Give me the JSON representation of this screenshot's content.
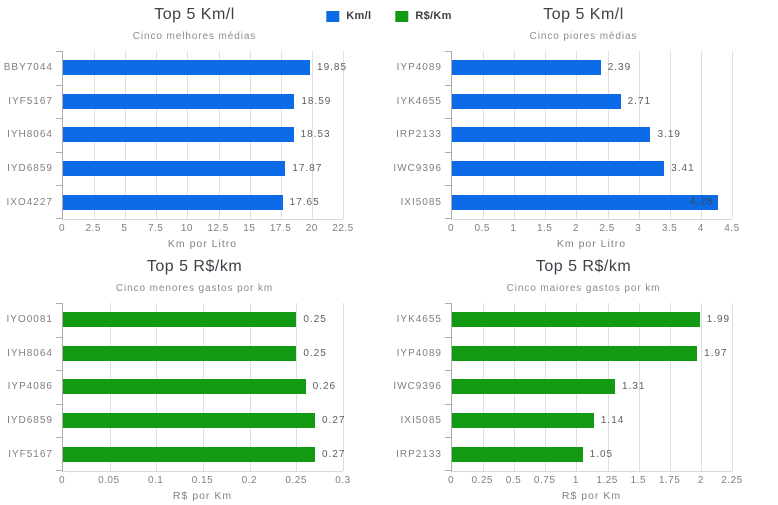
{
  "legend": {
    "items": [
      {
        "name": "kml-series",
        "label": "Km/l",
        "color": "#0d6be8"
      },
      {
        "name": "rskm-series",
        "label": "R$/Km",
        "color": "#129a13"
      }
    ]
  },
  "chart_data": [
    {
      "type": "bar",
      "orientation": "horizontal",
      "title": "Top 5 Km/l",
      "subtitle": "Cinco melhores médias",
      "xlabel": "Km por Litro",
      "bar_color": "#0d6be8",
      "xlim": [
        0,
        22.5
      ],
      "xticks": [
        "0",
        "2.5",
        "5",
        "7.5",
        "10",
        "12.5",
        "15",
        "17.5",
        "20",
        "22.5"
      ],
      "grid": true,
      "categories": [
        "BBY7044",
        "IYF5167",
        "IYH8064",
        "IYD6859",
        "IXO4227"
      ],
      "values": [
        19.85,
        18.59,
        18.53,
        17.87,
        17.65
      ],
      "value_labels": [
        "19.85",
        "18.59",
        "18.53",
        "17.87",
        "17.65"
      ],
      "label_inside": [
        false,
        false,
        false,
        false,
        false
      ]
    },
    {
      "type": "bar",
      "orientation": "horizontal",
      "title": "Top 5 Km/l",
      "subtitle": "Cinco piores médias",
      "xlabel": "Km por Litro",
      "bar_color": "#0d6be8",
      "xlim": [
        0,
        4.5
      ],
      "xticks": [
        "0",
        "0.5",
        "1",
        "1.5",
        "2",
        "2.5",
        "3",
        "3.5",
        "4",
        "4.5"
      ],
      "grid": true,
      "categories": [
        "IYP4089",
        "IYK4655",
        "IRP2133",
        "IWC9396",
        "IXI5085"
      ],
      "values": [
        2.39,
        2.71,
        3.19,
        3.41,
        4.28
      ],
      "value_labels": [
        "2.39",
        "2.71",
        "3.19",
        "3.41",
        "4.28"
      ],
      "label_inside": [
        false,
        false,
        false,
        false,
        true
      ]
    },
    {
      "type": "bar",
      "orientation": "horizontal",
      "title": "Top 5 R$/km",
      "subtitle": "Cinco menores gastos por km",
      "xlabel": "R$ por Km",
      "bar_color": "#129a13",
      "xlim": [
        0,
        0.3
      ],
      "xticks": [
        "0",
        "0.05",
        "0.1",
        "0.15",
        "0.2",
        "0.25",
        "0.3"
      ],
      "grid": true,
      "categories": [
        "IYO0081",
        "IYH8064",
        "IYP4086",
        "IYD6859",
        "IYF5167"
      ],
      "values": [
        0.25,
        0.25,
        0.26,
        0.27,
        0.27
      ],
      "value_labels": [
        "0.25",
        "0.25",
        "0.26",
        "0.27",
        "0.27"
      ],
      "label_inside": [
        false,
        false,
        false,
        false,
        false
      ]
    },
    {
      "type": "bar",
      "orientation": "horizontal",
      "title": "Top 5 R$/km",
      "subtitle": "Cinco maiores gastos por km",
      "xlabel": "R$ por Km",
      "bar_color": "#129a13",
      "xlim": [
        0,
        2.25
      ],
      "xticks": [
        "0",
        "0.25",
        "0.5",
        "0.75",
        "1",
        "1.25",
        "1.5",
        "1.75",
        "2",
        "2.25"
      ],
      "grid": true,
      "categories": [
        "IYK4655",
        "IYP4089",
        "IWC9396",
        "IXI5085",
        "IRP2133"
      ],
      "values": [
        1.99,
        1.97,
        1.31,
        1.14,
        1.05
      ],
      "value_labels": [
        "1.99",
        "1.97",
        "1.31",
        "1.14",
        "1.05"
      ],
      "label_inside": [
        false,
        false,
        false,
        false,
        false
      ]
    }
  ]
}
